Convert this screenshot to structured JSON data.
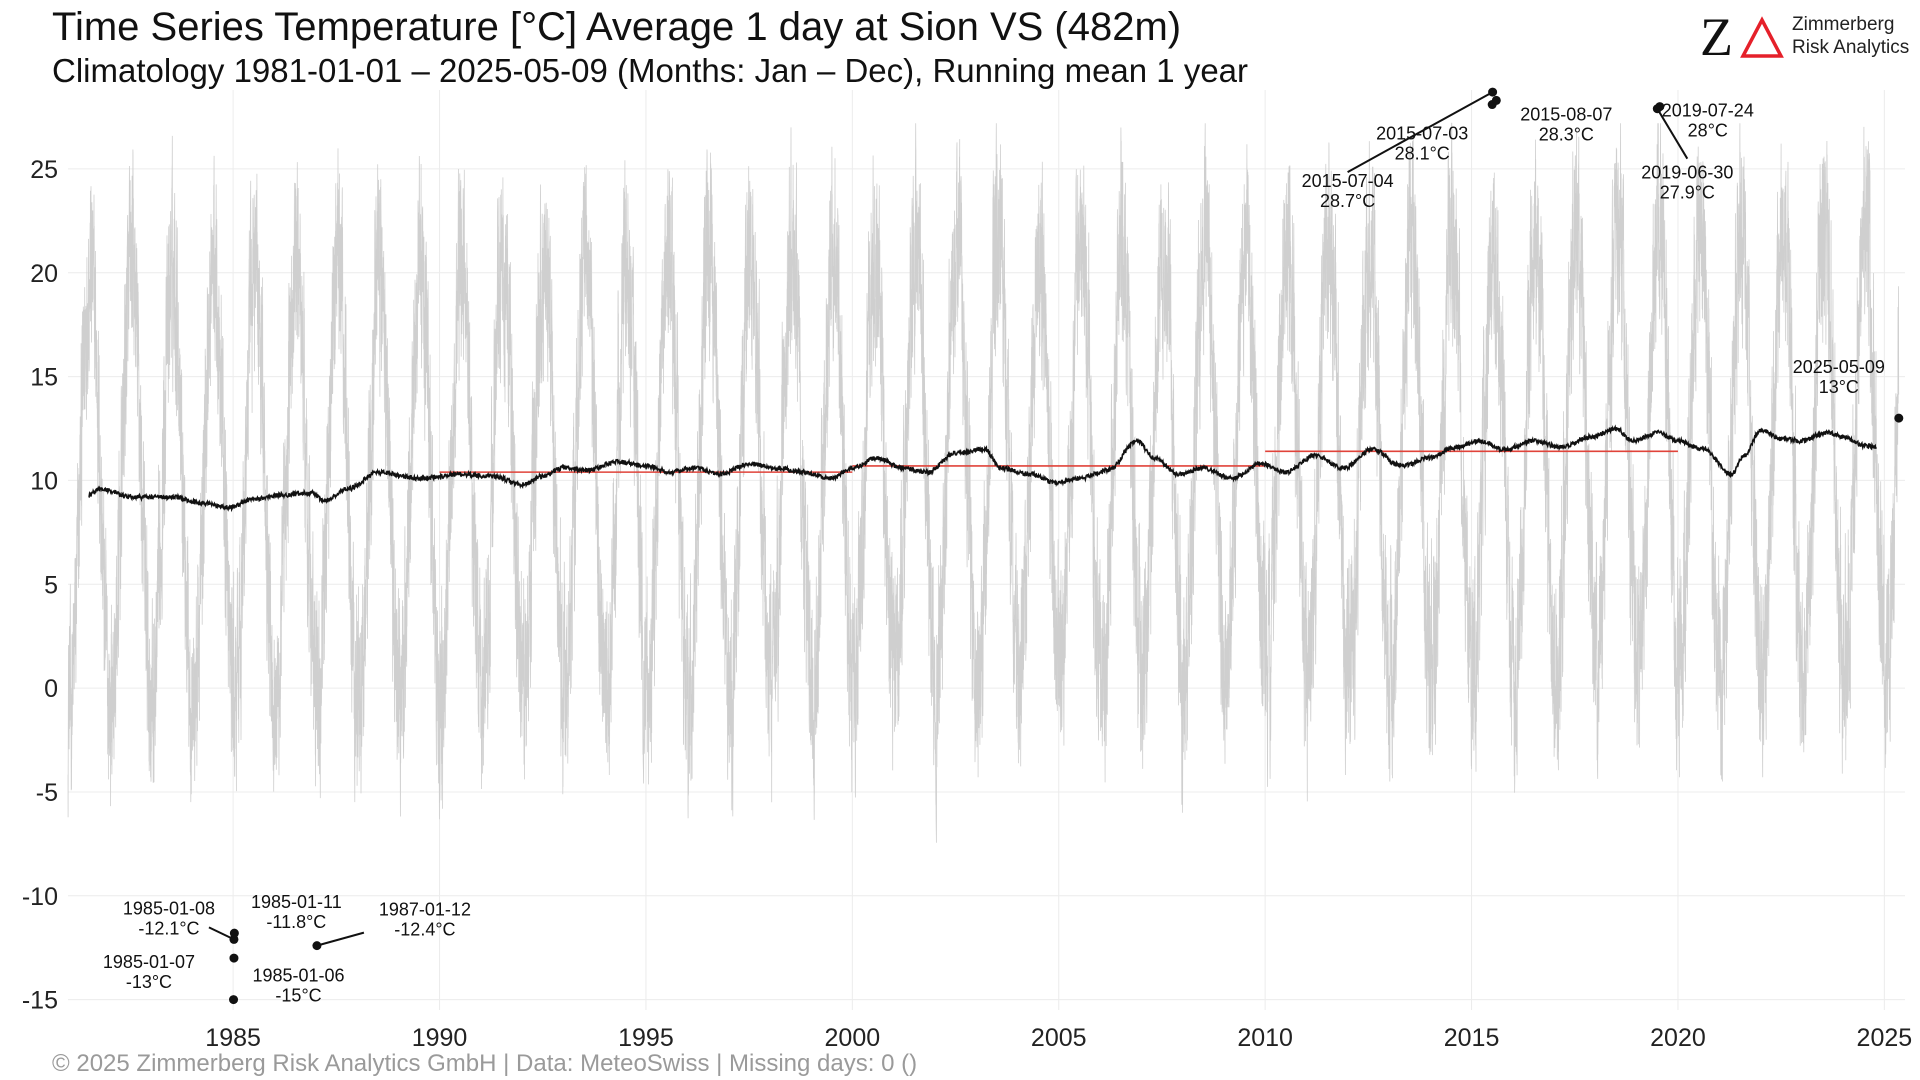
{
  "header": {
    "title": "Time Series Temperature [°C] Average 1 day at Sion  VS (482m)",
    "subtitle": "Climatology 1981-01-01 – 2025-05-09 (Months: Jan – Dec), Running mean 1 year"
  },
  "logo": {
    "mark_z": "Z",
    "name": "Zimmerberg",
    "tagline": "Risk Analytics",
    "accent_color": "#e5202a"
  },
  "footer": {
    "text": "©  2025 Zimmerberg Risk Analytics GmbH | Data: MeteoSwiss | Missing days: 0 ()"
  },
  "chart_data": {
    "type": "line",
    "title": "",
    "xlabel": "",
    "ylabel": "",
    "xlim": [
      1981.0,
      2025.5
    ],
    "ylim": [
      -15.5,
      28.8
    ],
    "grid": true,
    "x_ticks": [
      1985,
      1990,
      1995,
      2000,
      2005,
      2010,
      2015,
      2020,
      2025
    ],
    "y_ticks": [
      -15,
      -10,
      -5,
      0,
      5,
      10,
      15,
      20,
      25
    ],
    "colors": {
      "daily": "#cfcfcf",
      "running_mean": "#111111",
      "decade_mean": "#e0433a",
      "grid": "#ececec"
    },
    "daily_series": {
      "name": "",
      "annual_mean": 10.5,
      "amplitude": 10.5,
      "start": "1981-01-01",
      "end": "2025-05-09"
    },
    "running_mean": {
      "name": "",
      "x": [
        1981.5,
        1981.8,
        1982.5,
        1983.5,
        1984.3,
        1984.9,
        1985.5,
        1986.2,
        1986.9,
        1987.2,
        1987.8,
        1988.5,
        1989.5,
        1990.5,
        1991.3,
        1992.0,
        1992.5,
        1993.0,
        1993.6,
        1994.3,
        1995.0,
        1995.6,
        1996.2,
        1996.8,
        1997.5,
        1998.2,
        1998.8,
        1999.5,
        2000.0,
        2000.6,
        2001.2,
        2001.8,
        2002.5,
        2003.2,
        2003.6,
        2004.3,
        2004.9,
        2005.5,
        2006.2,
        2006.9,
        2007.3,
        2007.9,
        2008.5,
        2009.2,
        2009.9,
        2010.5,
        2011.2,
        2011.9,
        2012.6,
        2013.3,
        2014.0,
        2014.6,
        2015.2,
        2015.8,
        2016.5,
        2017.2,
        2017.9,
        2018.5,
        2018.9,
        2019.5,
        2020.0,
        2020.6,
        2021.3,
        2021.6,
        2022.0,
        2022.5,
        2023.0,
        2023.6,
        2024.0,
        2024.5,
        2024.8
      ],
      "values": [
        9.3,
        9.6,
        9.2,
        9.2,
        8.9,
        8.7,
        9.1,
        9.3,
        9.4,
        9.0,
        9.6,
        10.4,
        10.1,
        10.3,
        10.2,
        9.8,
        10.2,
        10.6,
        10.5,
        10.9,
        10.7,
        10.4,
        10.6,
        10.3,
        10.8,
        10.6,
        10.4,
        10.1,
        10.6,
        11.1,
        10.6,
        10.4,
        11.3,
        11.5,
        10.6,
        10.3,
        9.9,
        10.1,
        10.5,
        11.9,
        11.1,
        10.3,
        10.6,
        10.1,
        10.8,
        10.4,
        11.2,
        10.6,
        11.5,
        10.7,
        11.1,
        11.6,
        11.9,
        11.5,
        11.9,
        11.6,
        12.1,
        12.5,
        11.9,
        12.3,
        11.9,
        11.5,
        10.3,
        11.2,
        12.4,
        12.0,
        11.9,
        12.3,
        12.1,
        11.7,
        11.6
      ]
    },
    "decade_means": [
      {
        "x": [
          1990.0,
          2000.0
        ],
        "value": 10.4
      },
      {
        "x": [
          2000.0,
          2010.0
        ],
        "value": 10.7
      },
      {
        "x": [
          2010.0,
          2020.0
        ],
        "value": 11.4
      }
    ],
    "extremes": [
      {
        "date": "2015-07-04",
        "value": "28.7°C",
        "x": 2015.51,
        "y": 28.7
      },
      {
        "date": "2015-07-03",
        "value": "28.1°C",
        "x": 2015.5,
        "y": 28.1
      },
      {
        "date": "2015-08-07",
        "value": "28.3°C",
        "x": 2015.6,
        "y": 28.3
      },
      {
        "date": "2019-07-24",
        "value": "28°C",
        "x": 2019.56,
        "y": 28.0
      },
      {
        "date": "2019-06-30",
        "value": "27.9°C",
        "x": 2019.5,
        "y": 27.9
      },
      {
        "date": "2025-05-09",
        "value": "13°C",
        "x": 2025.35,
        "y": 13.0
      },
      {
        "date": "1985-01-08",
        "value": "-12.1°C",
        "x": 1985.02,
        "y": -12.1
      },
      {
        "date": "1985-01-11",
        "value": "-11.8°C",
        "x": 1985.03,
        "y": -11.8
      },
      {
        "date": "1987-01-12",
        "value": "-12.4°C",
        "x": 1987.03,
        "y": -12.4
      },
      {
        "date": "1985-01-07",
        "value": "-13°C",
        "x": 1985.02,
        "y": -13.0
      },
      {
        "date": "1985-01-06",
        "value": "-15°C",
        "x": 1985.01,
        "y": -15.0
      }
    ]
  }
}
